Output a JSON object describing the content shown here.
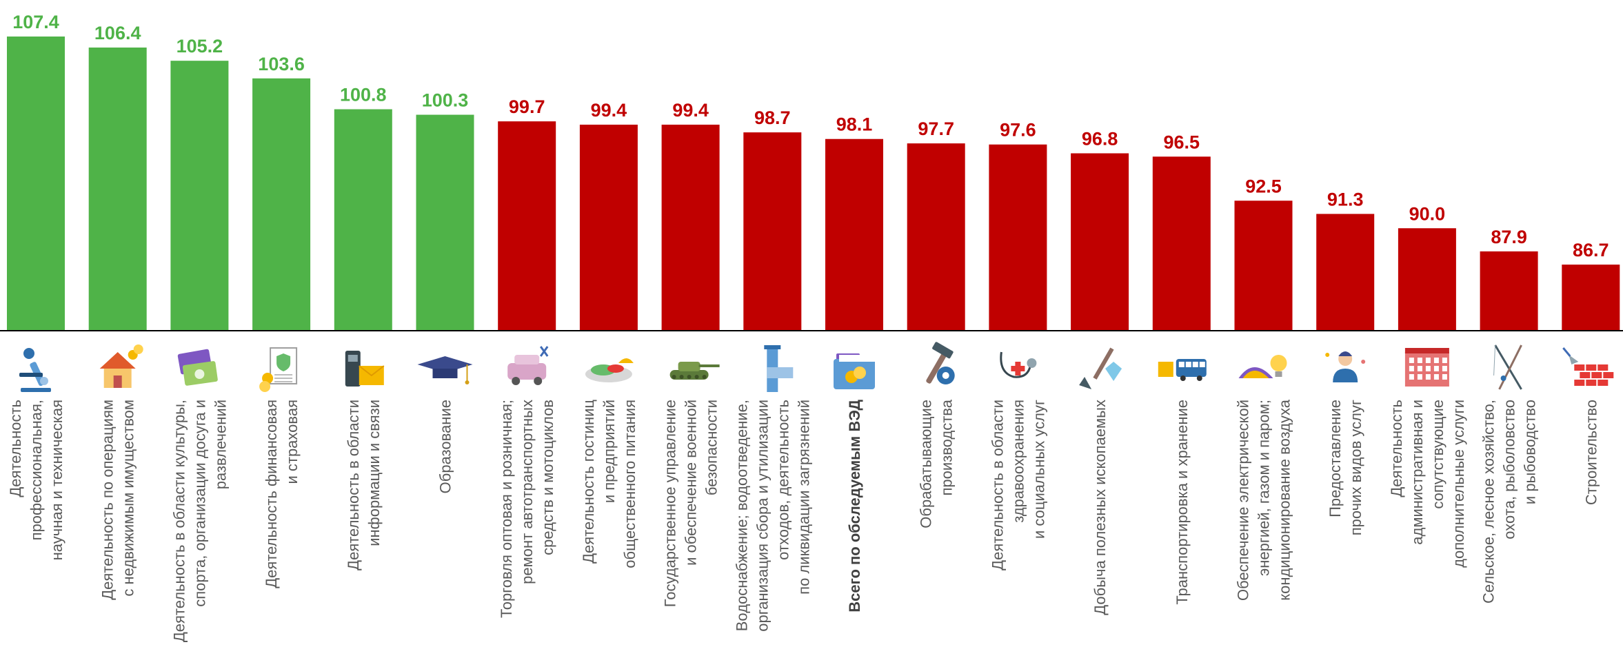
{
  "chart_data": {
    "type": "bar",
    "title": "",
    "xlabel": "",
    "ylabel": "",
    "ylim": [
      80,
      108
    ],
    "colors": {
      "above_100": "#4fb348",
      "below_100": "#c00000",
      "axis": "#000000",
      "label_text": "#595959"
    },
    "categories": [
      {
        "lines": [
          "Деятельность",
          "профессиональная,",
          "научная и техническая"
        ],
        "icon": "microscope-icon"
      },
      {
        "lines": [
          "Деятельность по операциям",
          "с недвижимым имуществом"
        ],
        "icon": "house-coins-icon"
      },
      {
        "lines": [
          "Деятельность в области культуры,",
          "спорта,  организации досуга  и",
          "развлечений"
        ],
        "icon": "tickets-icon"
      },
      {
        "lines": [
          "Деятельность финансовая",
          "и страховая"
        ],
        "icon": "insurance-document-icon"
      },
      {
        "lines": [
          "Деятельность в области",
          "информации и связи"
        ],
        "icon": "phone-envelope-icon"
      },
      {
        "lines": [
          "Образование"
        ],
        "icon": "graduation-cap-icon"
      },
      {
        "lines": [
          "Торговля оптовая и розничная;",
          "ремонт автотранспортных",
          "средств и мотоциклов"
        ],
        "icon": "car-repair-icon"
      },
      {
        "lines": [
          "Деятельность гостиниц",
          "и предприятий",
          "общественного питания"
        ],
        "icon": "food-plate-icon"
      },
      {
        "lines": [
          "Государственное управление",
          "и обеспечение военной",
          "безопасности"
        ],
        "icon": "tank-icon"
      },
      {
        "lines": [
          "Водоснабжение; водоотведение,",
          "организация сбора и утилизации",
          "отходов, деятельность",
          "по ликвидации загрязнений"
        ],
        "icon": "water-pipe-icon"
      },
      {
        "lines": [
          "Всего по обследуемым ВЭД"
        ],
        "icon": "folder-coins-icon",
        "bold": true
      },
      {
        "lines": [
          "Обрабатывающие",
          "производства"
        ],
        "icon": "hammer-gear-icon"
      },
      {
        "lines": [
          "Деятельность в области",
          "здравоохранения",
          "и социальных услуг"
        ],
        "icon": "stethoscope-icon"
      },
      {
        "lines": [
          "Добыча полезных ископаемых"
        ],
        "icon": "shovel-gem-icon"
      },
      {
        "lines": [
          "Транспортировка и хранение"
        ],
        "icon": "truck-bus-icon"
      },
      {
        "lines": [
          "Обеспечение электрической",
          "энергией, газом и паром;",
          "кондиционирование воздуха"
        ],
        "icon": "power-bulb-icon"
      },
      {
        "lines": [
          "Предоставление",
          "прочих видов услуг"
        ],
        "icon": "service-person-icon"
      },
      {
        "lines": [
          "Деятельность",
          "административная  и",
          "сопутствующие",
          "дополнительные услуги"
        ],
        "icon": "office-building-icon"
      },
      {
        "lines": [
          "Сельское, лесное хозяйство,",
          "охота, рыболовство",
          "и рыбоводство"
        ],
        "icon": "fishing-rods-icon"
      },
      {
        "lines": [
          "Строительство"
        ],
        "icon": "brick-trowel-icon"
      }
    ],
    "values": [
      107.4,
      106.4,
      105.2,
      103.6,
      100.8,
      100.3,
      99.7,
      99.4,
      99.4,
      98.7,
      98.1,
      97.7,
      97.6,
      96.8,
      96.5,
      92.5,
      91.3,
      90.0,
      87.9,
      86.7
    ],
    "value_labels": [
      "107.4",
      "106.4",
      "105.2",
      "103.6",
      "100.8",
      "100.3",
      "99.7",
      "99.4",
      "99.4",
      "98.7",
      "98.1",
      "97.7",
      "97.6",
      "96.8",
      "96.5",
      "92.5",
      "91.3",
      "90.0",
      "87.9",
      "86.7"
    ]
  }
}
